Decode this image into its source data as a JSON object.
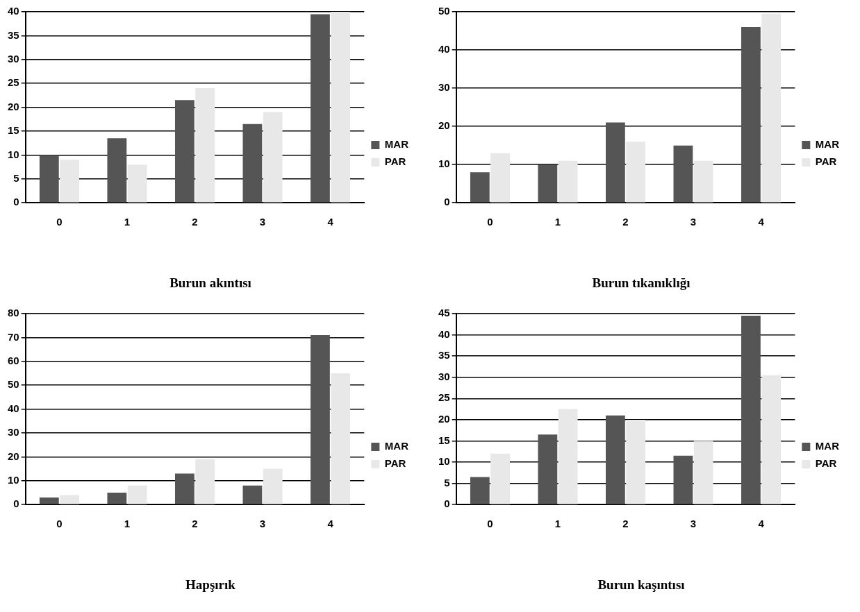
{
  "chart_data": [
    {
      "type": "bar",
      "title": "Burun akıntısı",
      "categories": [
        "0",
        "1",
        "2",
        "3",
        "4"
      ],
      "series": [
        {
          "name": "MAR",
          "color": "#555555",
          "values": [
            10,
            13.5,
            21.5,
            16.5,
            39.5
          ]
        },
        {
          "name": "PAR",
          "color": "#e8e8e8",
          "values": [
            9,
            8,
            24,
            19,
            40
          ]
        }
      ],
      "ylim": [
        0,
        40
      ],
      "yticks": [
        0,
        5,
        10,
        15,
        20,
        25,
        30,
        35,
        40
      ],
      "grid": "y",
      "legend": "right"
    },
    {
      "type": "bar",
      "title": "Burun tıkanıklığı",
      "categories": [
        "0",
        "1",
        "2",
        "3",
        "4"
      ],
      "series": [
        {
          "name": "MAR",
          "color": "#555555",
          "values": [
            8,
            10,
            21,
            15,
            46
          ]
        },
        {
          "name": "PAR",
          "color": "#e8e8e8",
          "values": [
            13,
            11,
            16,
            11,
            49.5
          ]
        }
      ],
      "ylim": [
        0,
        50
      ],
      "yticks": [
        0,
        10,
        20,
        30,
        40,
        50
      ],
      "grid": "y",
      "legend": "right"
    },
    {
      "type": "bar",
      "title": "Hapşırık",
      "categories": [
        "0",
        "1",
        "2",
        "3",
        "4"
      ],
      "series": [
        {
          "name": "MAR",
          "color": "#555555",
          "values": [
            3,
            5,
            13,
            8,
            71
          ]
        },
        {
          "name": "PAR",
          "color": "#e8e8e8",
          "values": [
            4,
            8,
            19,
            15,
            55
          ]
        }
      ],
      "ylim": [
        0,
        80
      ],
      "yticks": [
        0,
        10,
        20,
        30,
        40,
        50,
        60,
        70,
        80
      ],
      "grid": "y",
      "legend": "right"
    },
    {
      "type": "bar",
      "title": "Burun kaşıntısı",
      "categories": [
        "0",
        "1",
        "2",
        "3",
        "4"
      ],
      "series": [
        {
          "name": "MAR",
          "color": "#555555",
          "values": [
            6.5,
            16.5,
            21,
            11.5,
            44.5
          ]
        },
        {
          "name": "PAR",
          "color": "#e8e8e8",
          "values": [
            12,
            22.5,
            20,
            15,
            30.5
          ]
        }
      ],
      "ylim": [
        0,
        45
      ],
      "yticks": [
        0,
        5,
        10,
        15,
        20,
        25,
        30,
        35,
        40,
        45
      ],
      "grid": "y",
      "legend": "right"
    }
  ]
}
